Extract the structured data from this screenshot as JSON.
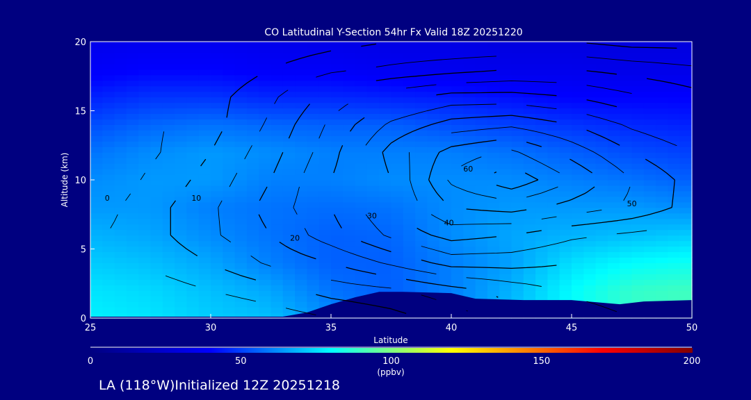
{
  "chart_data": {
    "type": "heatmap",
    "title": "CO Latitudinal Y-Section 54hr  Fx Valid 18Z 20251220",
    "xlabel": "Latitude",
    "ylabel": "Altitude (km)",
    "xlim": [
      25,
      50
    ],
    "ylim": [
      0,
      20
    ],
    "xticks": [
      "25",
      "30",
      "35",
      "40",
      "45",
      "50"
    ],
    "yticks": [
      "0",
      "5",
      "10",
      "15",
      "20"
    ],
    "colorbar": {
      "range": [
        0,
        200
      ],
      "ticks": [
        "0",
        "50",
        "100",
        "150",
        "200"
      ],
      "unit": "(ppbv)",
      "stops": [
        "#000080",
        "#0000ff",
        "#00ffff",
        "#ffff00",
        "#ff0000",
        "#800000"
      ]
    },
    "grid_lat": [
      25,
      27.5,
      30,
      32.5,
      35,
      37.5,
      40,
      42.5,
      45,
      47.5,
      50
    ],
    "grid_alt": [
      0,
      2,
      4,
      6,
      8,
      10,
      12,
      14,
      16,
      18,
      20
    ],
    "fill_values": [
      [
        78,
        76,
        72,
        70,
        62,
        55,
        60,
        70,
        80,
        88,
        90
      ],
      [
        76,
        74,
        70,
        66,
        58,
        55,
        60,
        68,
        80,
        88,
        90
      ],
      [
        72,
        70,
        66,
        60,
        55,
        55,
        60,
        65,
        75,
        80,
        82
      ],
      [
        68,
        66,
        62,
        58,
        55,
        56,
        62,
        66,
        68,
        70,
        72
      ],
      [
        64,
        64,
        60,
        58,
        57,
        58,
        62,
        64,
        64,
        64,
        62
      ],
      [
        62,
        64,
        64,
        60,
        60,
        62,
        62,
        62,
        60,
        58,
        55
      ],
      [
        58,
        62,
        64,
        62,
        60,
        60,
        60,
        58,
        55,
        52,
        50
      ],
      [
        52,
        56,
        58,
        56,
        55,
        55,
        52,
        50,
        48,
        46,
        45
      ],
      [
        45,
        48,
        48,
        46,
        46,
        45,
        44,
        42,
        40,
        40,
        40
      ],
      [
        38,
        40,
        40,
        38,
        38,
        36,
        35,
        34,
        34,
        33,
        33
      ],
      [
        34,
        35,
        35,
        34,
        33,
        32,
        32,
        30,
        30,
        30,
        30
      ]
    ],
    "contour_values": [
      [
        0,
        0,
        0,
        2,
        5,
        8,
        12,
        18,
        22,
        25,
        25
      ],
      [
        0,
        2,
        5,
        8,
        12,
        14,
        18,
        22,
        26,
        28,
        28
      ],
      [
        2,
        6,
        10,
        16,
        20,
        26,
        32,
        32,
        30,
        30,
        30
      ],
      [
        4,
        8,
        14,
        20,
        28,
        36,
        42,
        40,
        36,
        34,
        32
      ],
      [
        2,
        8,
        14,
        22,
        30,
        40,
        50,
        52,
        48,
        44,
        38
      ],
      [
        0,
        6,
        12,
        20,
        30,
        40,
        56,
        64,
        55,
        45,
        38
      ],
      [
        0,
        4,
        10,
        18,
        28,
        42,
        52,
        56,
        48,
        40,
        35
      ],
      [
        0,
        4,
        8,
        16,
        26,
        36,
        42,
        44,
        40,
        34,
        30
      ],
      [
        0,
        4,
        8,
        14,
        22,
        28,
        32,
        32,
        30,
        26,
        22
      ],
      [
        0,
        2,
        6,
        10,
        14,
        16,
        18,
        20,
        20,
        18,
        16
      ],
      [
        0,
        0,
        2,
        6,
        8,
        10,
        10,
        10,
        10,
        8,
        8
      ]
    ],
    "contour_levels": [
      0,
      5,
      10,
      15,
      20,
      25,
      30,
      35,
      40,
      45,
      50,
      55,
      60
    ],
    "contour_labels": [
      "0",
      "10",
      "20",
      "30",
      "40",
      "50",
      "60"
    ],
    "terrain": {
      "lat": [
        25,
        33,
        34,
        35,
        36,
        37,
        38,
        40,
        41,
        43,
        45,
        47,
        48,
        50
      ],
      "alt": [
        0.1,
        0.1,
        0.4,
        1.0,
        1.5,
        1.9,
        1.9,
        1.8,
        1.4,
        1.3,
        1.3,
        1.0,
        1.2,
        1.3
      ]
    }
  },
  "footer": "LA (118°W)Initialized 12Z 20251218"
}
